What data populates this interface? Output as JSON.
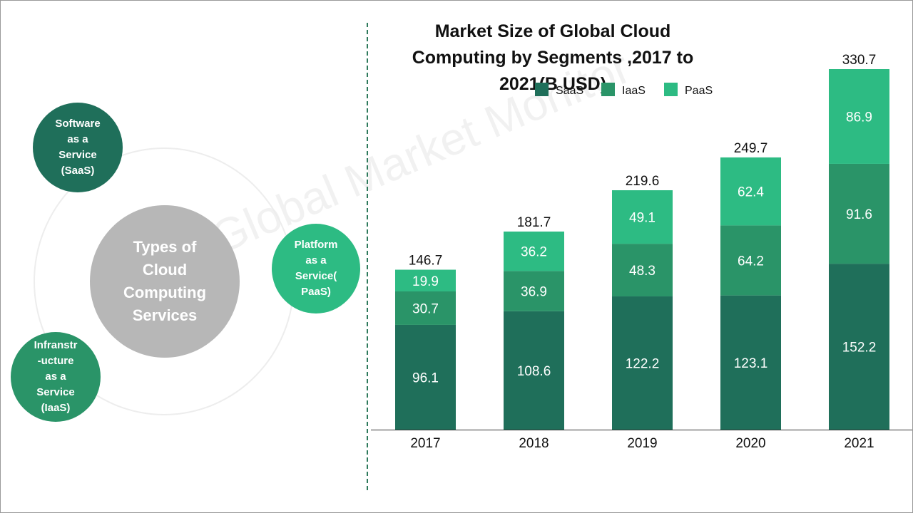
{
  "left_panel": {
    "center": "Types of\nCloud\nComputing\nServices",
    "saas": "Software\nas a\nService\n(SaaS)",
    "paas": "Platform\nas a\nService(\nPaaS)",
    "iaas": "Infranstr\n-ucture\nas a\nService\n(IaaS)",
    "watermark": "Global Market Monitor"
  },
  "colors": {
    "saas": "#1f6f5a",
    "iaas": "#2a9468",
    "paas": "#2dbb83",
    "center": "#b7b7b7",
    "divider": "#2e7a5c"
  },
  "chart_data": {
    "type": "bar",
    "stacked": true,
    "title": "Market Size of Global Cloud Computing by Segments ,2017 to 2021(B USD)",
    "categories": [
      "2017",
      "2018",
      "2019",
      "2020",
      "2021"
    ],
    "series": [
      {
        "name": "SaaS",
        "color": "#1f6f5a",
        "values": [
          96.1,
          108.6,
          122.2,
          123.1,
          152.2
        ]
      },
      {
        "name": "IaaS",
        "color": "#2a9468",
        "values": [
          30.7,
          36.9,
          48.3,
          64.2,
          91.6
        ]
      },
      {
        "name": "PaaS",
        "color": "#2dbb83",
        "values": [
          19.9,
          36.2,
          49.1,
          62.4,
          86.9
        ]
      }
    ],
    "totals": [
      146.7,
      181.7,
      219.6,
      249.7,
      330.7
    ],
    "ylim": [
      0,
      330.7
    ],
    "legend": "top",
    "grid": false
  }
}
